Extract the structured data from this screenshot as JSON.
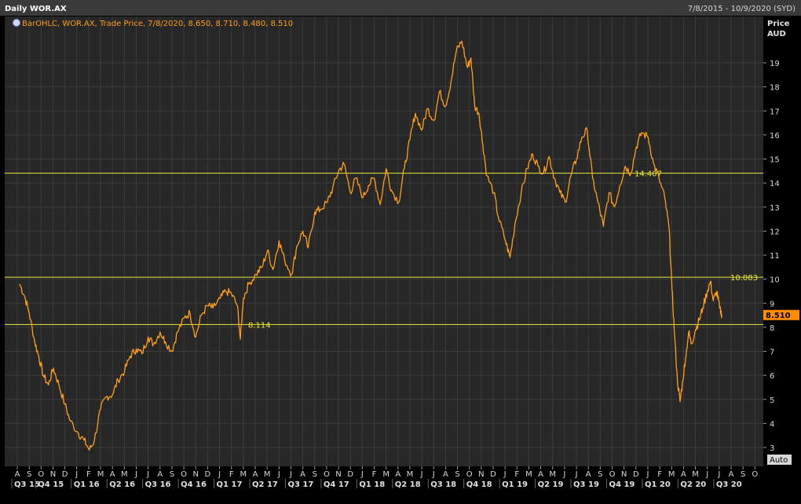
{
  "header": {
    "title": "Daily WOR.AX",
    "date_range": "7/8/2015 - 10/9/2020 (SYD)"
  },
  "legend": {
    "icon": "bar-ohlc-icon",
    "text": "BarOHLC, WOR.AX, Trade Price,  7/8/2020, 8.650, 8.710, 8.480, 8.510"
  },
  "axis": {
    "price_label": "Price",
    "currency_label": "AUD",
    "auto_button": "Auto"
  },
  "colors": {
    "background": "#000000",
    "plot_background": "#272727",
    "grid": "#3b3b3b",
    "price_line": "#ff9f1a",
    "reference_line": "#e8e83a",
    "last_price_badge": "#ff8c00",
    "axis_text": "#d8d8d8"
  },
  "chart_data": {
    "type": "line",
    "symbol": "WOR.AX",
    "series_type": "BarOHLC",
    "ylim": [
      2.5,
      20.5
    ],
    "y_ticks": [
      3,
      4,
      5,
      6,
      7,
      8,
      9,
      10,
      11,
      12,
      13,
      14,
      15,
      16,
      17,
      18,
      19
    ],
    "last_price": "8.510",
    "reference_lines": [
      {
        "value": 14.407,
        "label": "14.407"
      },
      {
        "value": 10.083,
        "label": "10.083"
      },
      {
        "value": 8.114,
        "label": "8.114"
      }
    ],
    "month_ticks": [
      "A",
      "S",
      "O",
      "N",
      "D",
      "J",
      "F",
      "M",
      "A",
      "M",
      "J",
      "J",
      "A",
      "S",
      "O",
      "N",
      "D",
      "J",
      "F",
      "M",
      "A",
      "M",
      "J",
      "J",
      "A",
      "S",
      "O",
      "N",
      "D",
      "J",
      "F",
      "M",
      "A",
      "M",
      "J",
      "J",
      "A",
      "S",
      "O",
      "N",
      "D",
      "J",
      "F",
      "M",
      "A",
      "M",
      "J",
      "J",
      "A",
      "S",
      "O",
      "N",
      "D",
      "J",
      "F",
      "M",
      "A",
      "M",
      "J",
      "J",
      "A",
      "S",
      "O"
    ],
    "quarter_ticks": [
      {
        "label": "Q3 15",
        "month_index": 0
      },
      {
        "label": "Q4 15",
        "month_index": 2
      },
      {
        "label": "Q1 16",
        "month_index": 5
      },
      {
        "label": "Q2 16",
        "month_index": 8
      },
      {
        "label": "Q3 16",
        "month_index": 11
      },
      {
        "label": "Q4 16",
        "month_index": 14
      },
      {
        "label": "Q1 17",
        "month_index": 17
      },
      {
        "label": "Q2 17",
        "month_index": 20
      },
      {
        "label": "Q3 17",
        "month_index": 23
      },
      {
        "label": "Q4 17",
        "month_index": 26
      },
      {
        "label": "Q1 18",
        "month_index": 29
      },
      {
        "label": "Q2 18",
        "month_index": 32
      },
      {
        "label": "Q3 18",
        "month_index": 35
      },
      {
        "label": "Q4 18",
        "month_index": 38
      },
      {
        "label": "Q1 19",
        "month_index": 41
      },
      {
        "label": "Q2 19",
        "month_index": 44
      },
      {
        "label": "Q3 19",
        "month_index": 47
      },
      {
        "label": "Q4 19",
        "month_index": 50
      },
      {
        "label": "Q1 20",
        "month_index": 53
      },
      {
        "label": "Q2 20",
        "month_index": 56
      },
      {
        "label": "Q3 20",
        "month_index": 59
      }
    ],
    "points": [
      [
        "2015-08-07",
        9.8
      ],
      [
        "2015-08-20",
        9.3
      ],
      [
        "2015-09-01",
        8.6
      ],
      [
        "2015-09-15",
        7.4
      ],
      [
        "2015-09-25",
        6.8
      ],
      [
        "2015-10-07",
        6.0
      ],
      [
        "2015-10-20",
        5.6
      ],
      [
        "2015-11-02",
        6.3
      ],
      [
        "2015-11-16",
        5.6
      ],
      [
        "2015-12-01",
        4.8
      ],
      [
        "2015-12-15",
        4.1
      ],
      [
        "2016-01-05",
        3.6
      ],
      [
        "2016-01-20",
        3.3
      ],
      [
        "2016-02-03",
        2.9
      ],
      [
        "2016-02-15",
        3.3
      ],
      [
        "2016-03-01",
        4.6
      ],
      [
        "2016-03-15",
        5.1
      ],
      [
        "2016-04-01",
        5.2
      ],
      [
        "2016-04-15",
        5.8
      ],
      [
        "2016-05-02",
        6.2
      ],
      [
        "2016-05-16",
        6.8
      ],
      [
        "2016-06-01",
        7.1
      ],
      [
        "2016-06-15",
        6.9
      ],
      [
        "2016-07-01",
        7.6
      ],
      [
        "2016-07-15",
        7.3
      ],
      [
        "2016-08-01",
        7.8
      ],
      [
        "2016-08-15",
        7.4
      ],
      [
        "2016-09-01",
        7.0
      ],
      [
        "2016-09-15",
        7.8
      ],
      [
        "2016-10-03",
        8.4
      ],
      [
        "2016-10-17",
        8.6
      ],
      [
        "2016-11-01",
        7.6
      ],
      [
        "2016-11-15",
        8.5
      ],
      [
        "2016-12-01",
        8.9
      ],
      [
        "2016-12-15",
        8.8
      ],
      [
        "2017-01-03",
        9.2
      ],
      [
        "2017-01-17",
        9.5
      ],
      [
        "2017-02-01",
        9.4
      ],
      [
        "2017-02-15",
        8.9
      ],
      [
        "2017-02-22",
        7.5
      ],
      [
        "2017-03-01",
        9.2
      ],
      [
        "2017-03-15",
        9.8
      ],
      [
        "2017-04-03",
        10.2
      ],
      [
        "2017-04-18",
        10.5
      ],
      [
        "2017-05-02",
        11.2
      ],
      [
        "2017-05-16",
        10.4
      ],
      [
        "2017-06-01",
        11.6
      ],
      [
        "2017-06-15",
        10.8
      ],
      [
        "2017-07-03",
        10.2
      ],
      [
        "2017-07-17",
        11.4
      ],
      [
        "2017-08-01",
        12.0
      ],
      [
        "2017-08-15",
        11.3
      ],
      [
        "2017-09-01",
        12.8
      ],
      [
        "2017-09-15",
        12.9
      ],
      [
        "2017-10-03",
        13.2
      ],
      [
        "2017-10-17",
        13.8
      ],
      [
        "2017-11-01",
        14.5
      ],
      [
        "2017-11-15",
        14.8
      ],
      [
        "2017-12-01",
        13.6
      ],
      [
        "2017-12-15",
        14.2
      ],
      [
        "2018-01-03",
        13.4
      ],
      [
        "2018-01-17",
        13.9
      ],
      [
        "2018-02-01",
        14.2
      ],
      [
        "2018-02-15",
        13.1
      ],
      [
        "2018-03-01",
        14.6
      ],
      [
        "2018-03-15",
        13.7
      ],
      [
        "2018-04-03",
        13.2
      ],
      [
        "2018-04-17",
        14.6
      ],
      [
        "2018-05-01",
        15.8
      ],
      [
        "2018-05-15",
        16.9
      ],
      [
        "2018-06-01",
        16.2
      ],
      [
        "2018-06-15",
        17.1
      ],
      [
        "2018-07-02",
        16.6
      ],
      [
        "2018-07-16",
        17.8
      ],
      [
        "2018-08-01",
        17.2
      ],
      [
        "2018-08-15",
        18.2
      ],
      [
        "2018-08-29",
        19.5
      ],
      [
        "2018-09-12",
        19.9
      ],
      [
        "2018-09-26",
        18.8
      ],
      [
        "2018-10-05",
        19.2
      ],
      [
        "2018-10-15",
        17.2
      ],
      [
        "2018-10-26",
        16.9
      ],
      [
        "2018-11-05",
        15.6
      ],
      [
        "2018-11-15",
        14.3
      ],
      [
        "2018-12-03",
        13.6
      ],
      [
        "2018-12-14",
        12.6
      ],
      [
        "2019-01-02",
        11.6
      ],
      [
        "2019-01-14",
        10.9
      ],
      [
        "2019-01-28",
        12.4
      ],
      [
        "2019-02-11",
        13.6
      ],
      [
        "2019-02-25",
        14.6
      ],
      [
        "2019-03-11",
        15.2
      ],
      [
        "2019-03-25",
        14.7
      ],
      [
        "2019-04-08",
        14.4
      ],
      [
        "2019-04-22",
        15.1
      ],
      [
        "2019-05-06",
        14.2
      ],
      [
        "2019-05-20",
        13.6
      ],
      [
        "2019-06-03",
        13.2
      ],
      [
        "2019-06-17",
        14.3
      ],
      [
        "2019-07-01",
        15.0
      ],
      [
        "2019-07-15",
        15.9
      ],
      [
        "2019-07-29",
        16.2
      ],
      [
        "2019-08-12",
        14.2
      ],
      [
        "2019-08-26",
        13.2
      ],
      [
        "2019-09-09",
        12.2
      ],
      [
        "2019-09-23",
        13.6
      ],
      [
        "2019-10-07",
        13.0
      ],
      [
        "2019-10-21",
        13.9
      ],
      [
        "2019-11-04",
        14.7
      ],
      [
        "2019-11-18",
        14.4
      ],
      [
        "2019-12-02",
        15.5
      ],
      [
        "2019-12-16",
        16.1
      ],
      [
        "2020-01-02",
        15.9
      ],
      [
        "2020-01-16",
        14.8
      ],
      [
        "2020-01-30",
        14.2
      ],
      [
        "2020-02-13",
        13.4
      ],
      [
        "2020-02-24",
        12.1
      ],
      [
        "2020-03-02",
        9.6
      ],
      [
        "2020-03-09",
        7.6
      ],
      [
        "2020-03-16",
        5.8
      ],
      [
        "2020-03-23",
        4.9
      ],
      [
        "2020-03-30",
        5.8
      ],
      [
        "2020-04-06",
        6.7
      ],
      [
        "2020-04-14",
        7.8
      ],
      [
        "2020-04-21",
        7.3
      ],
      [
        "2020-05-01",
        7.9
      ],
      [
        "2020-05-11",
        8.3
      ],
      [
        "2020-05-20",
        8.8
      ],
      [
        "2020-06-01",
        9.5
      ],
      [
        "2020-06-09",
        9.9
      ],
      [
        "2020-06-16",
        9.1
      ],
      [
        "2020-06-25",
        9.5
      ],
      [
        "2020-07-02",
        8.8
      ],
      [
        "2020-07-08",
        8.51
      ]
    ]
  }
}
